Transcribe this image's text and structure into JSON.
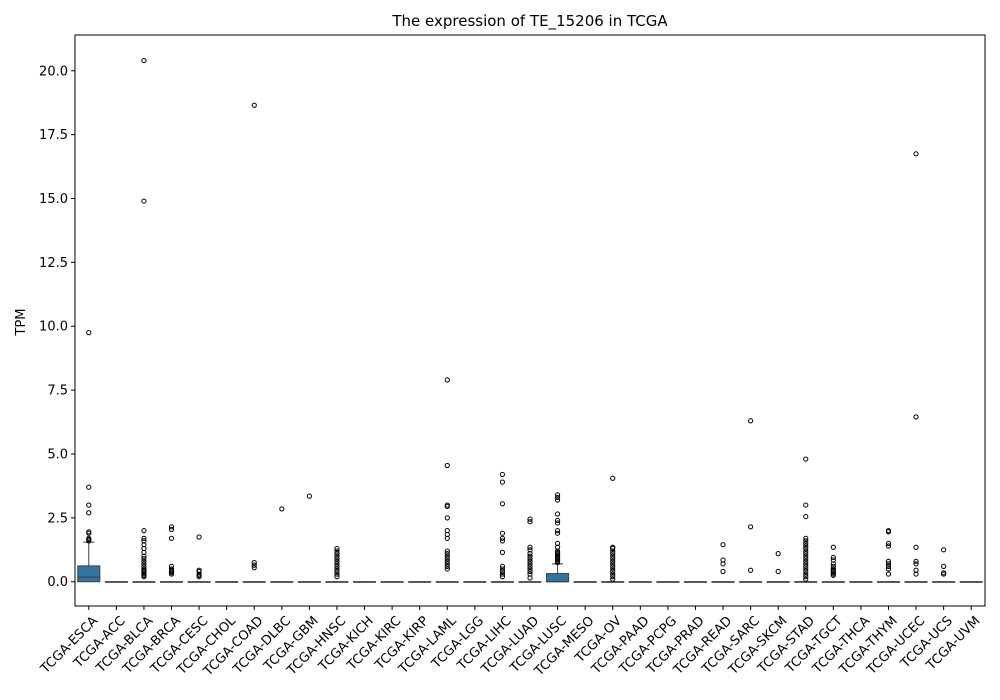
{
  "chart_data": {
    "type": "box",
    "title": "The expression of TE_15206 in TCGA",
    "xlabel": "",
    "ylabel": "TPM",
    "ylim": [
      -0.95,
      21.4
    ],
    "yticks": [
      0.0,
      2.5,
      5.0,
      7.5,
      10.0,
      12.5,
      15.0,
      17.5,
      20.0
    ],
    "ytick_labels": [
      "0.0",
      "2.5",
      "5.0",
      "7.5",
      "10.0",
      "12.5",
      "15.0",
      "17.5",
      "20.0"
    ],
    "grid": false,
    "box_color": "#3274a1",
    "categories": [
      "TCGA-ESCA",
      "TCGA-ACC",
      "TCGA-BLCA",
      "TCGA-BRCA",
      "TCGA-CESC",
      "TCGA-CHOL",
      "TCGA-COAD",
      "TCGA-DLBC",
      "TCGA-GBM",
      "TCGA-HNSC",
      "TCGA-KICH",
      "TCGA-KIRC",
      "TCGA-KIRP",
      "TCGA-LAML",
      "TCGA-LGG",
      "TCGA-LIHC",
      "TCGA-LUAD",
      "TCGA-LUSC",
      "TCGA-MESO",
      "TCGA-OV",
      "TCGA-PAAD",
      "TCGA-PCPG",
      "TCGA-PRAD",
      "TCGA-READ",
      "TCGA-SARC",
      "TCGA-SKCM",
      "TCGA-STAD",
      "TCGA-TGCT",
      "TCGA-THCA",
      "TCGA-THYM",
      "TCGA-UCEC",
      "TCGA-UCS",
      "TCGA-UVM"
    ],
    "boxes": [
      {
        "q1": 0.0,
        "median": 0.18,
        "q3": 0.62,
        "whisker_low": 0.0,
        "whisker_high": 1.55,
        "outliers": [
          9.75,
          3.7,
          3.0,
          2.7,
          1.95,
          1.9,
          1.7,
          1.65,
          1.6
        ]
      },
      {
        "q1": 0,
        "median": 0,
        "q3": 0,
        "whisker_low": 0,
        "whisker_high": 0,
        "outliers": []
      },
      {
        "q1": 0,
        "median": 0,
        "q3": 0,
        "whisker_low": 0,
        "whisker_high": 0,
        "outliers": [
          20.4,
          14.9,
          2.0,
          1.7,
          1.6,
          1.45,
          1.3,
          1.15,
          1.0,
          0.9,
          0.8,
          0.7,
          0.6,
          0.5,
          0.45,
          0.4,
          0.35,
          0.3,
          0.25,
          0.2
        ]
      },
      {
        "q1": 0,
        "median": 0,
        "q3": 0,
        "whisker_low": 0,
        "whisker_high": 0,
        "outliers": [
          2.15,
          2.05,
          1.7,
          0.6,
          0.5,
          0.45,
          0.4,
          0.35,
          0.3
        ]
      },
      {
        "q1": 0,
        "median": 0,
        "q3": 0,
        "whisker_low": 0,
        "whisker_high": 0,
        "outliers": [
          1.75,
          0.45,
          0.4,
          0.3,
          0.25,
          0.2
        ]
      },
      {
        "q1": 0,
        "median": 0,
        "q3": 0,
        "whisker_low": 0,
        "whisker_high": 0,
        "outliers": []
      },
      {
        "q1": 0,
        "median": 0,
        "q3": 0,
        "whisker_low": 0,
        "whisker_high": 0,
        "outliers": [
          18.65,
          0.75,
          0.65,
          0.55
        ]
      },
      {
        "q1": 0,
        "median": 0,
        "q3": 0,
        "whisker_low": 0,
        "whisker_high": 0,
        "outliers": [
          2.85
        ]
      },
      {
        "q1": 0,
        "median": 0,
        "q3": 0,
        "whisker_low": 0,
        "whisker_high": 0,
        "outliers": [
          3.35
        ]
      },
      {
        "q1": 0,
        "median": 0,
        "q3": 0,
        "whisker_low": 0,
        "whisker_high": 0,
        "outliers": [
          1.3,
          1.2,
          1.1,
          1.0,
          0.9,
          0.8,
          0.7,
          0.6,
          0.5,
          0.4,
          0.3,
          0.2
        ]
      },
      {
        "q1": 0,
        "median": 0,
        "q3": 0,
        "whisker_low": 0,
        "whisker_high": 0,
        "outliers": []
      },
      {
        "q1": 0,
        "median": 0,
        "q3": 0,
        "whisker_low": 0,
        "whisker_high": 0,
        "outliers": []
      },
      {
        "q1": 0,
        "median": 0,
        "q3": 0,
        "whisker_low": 0,
        "whisker_high": 0,
        "outliers": []
      },
      {
        "q1": 0,
        "median": 0,
        "q3": 0,
        "whisker_low": 0,
        "whisker_high": 0,
        "outliers": [
          7.9,
          4.55,
          3.0,
          2.95,
          2.5,
          2.0,
          1.85,
          1.7,
          1.2,
          1.1,
          1.0,
          0.9,
          0.8,
          0.7,
          0.6,
          0.5
        ]
      },
      {
        "q1": 0,
        "median": 0,
        "q3": 0,
        "whisker_low": 0,
        "whisker_high": 0,
        "outliers": []
      },
      {
        "q1": 0,
        "median": 0,
        "q3": 0,
        "whisker_low": 0,
        "whisker_high": 0,
        "outliers": [
          4.2,
          3.9,
          3.05,
          1.9,
          1.7,
          1.6,
          1.15,
          0.6,
          0.5,
          0.4,
          0.3,
          0.2
        ]
      },
      {
        "q1": 0,
        "median": 0,
        "q3": 0,
        "whisker_low": 0,
        "whisker_high": 0,
        "outliers": [
          2.45,
          2.35,
          1.35,
          1.25,
          1.1,
          1.0,
          0.9,
          0.8,
          0.7,
          0.6,
          0.5,
          0.4,
          0.3,
          0.15
        ]
      },
      {
        "q1": 0.0,
        "median": 0.0,
        "q3": 0.32,
        "whisker_low": 0.0,
        "whisker_high": 0.7,
        "outliers": [
          3.4,
          3.3,
          3.2,
          2.65,
          2.4,
          2.3,
          2.0,
          1.9,
          1.5,
          1.35,
          1.2,
          1.15,
          1.1,
          1.05,
          1.0,
          0.95,
          0.9,
          0.85,
          0.8,
          0.75
        ]
      },
      {
        "q1": 0,
        "median": 0,
        "q3": 0,
        "whisker_low": 0,
        "whisker_high": 0,
        "outliers": []
      },
      {
        "q1": 0,
        "median": 0,
        "q3": 0,
        "whisker_low": 0,
        "whisker_high": 0,
        "outliers": [
          4.05,
          1.35,
          1.3,
          1.2,
          1.1,
          1.0,
          0.9,
          0.8,
          0.7,
          0.6,
          0.5,
          0.4,
          0.3,
          0.2,
          0.1
        ]
      },
      {
        "q1": 0,
        "median": 0,
        "q3": 0,
        "whisker_low": 0,
        "whisker_high": 0,
        "outliers": []
      },
      {
        "q1": 0,
        "median": 0,
        "q3": 0,
        "whisker_low": 0,
        "whisker_high": 0,
        "outliers": []
      },
      {
        "q1": 0,
        "median": 0,
        "q3": 0,
        "whisker_low": 0,
        "whisker_high": 0,
        "outliers": []
      },
      {
        "q1": 0,
        "median": 0,
        "q3": 0,
        "whisker_low": 0,
        "whisker_high": 0,
        "outliers": [
          1.45,
          0.85,
          0.7,
          0.4
        ]
      },
      {
        "q1": 0,
        "median": 0,
        "q3": 0,
        "whisker_low": 0,
        "whisker_high": 0,
        "outliers": [
          6.3,
          2.15,
          0.45
        ]
      },
      {
        "q1": 0,
        "median": 0,
        "q3": 0,
        "whisker_low": 0,
        "whisker_high": 0,
        "outliers": [
          1.1,
          0.4
        ]
      },
      {
        "q1": 0,
        "median": 0,
        "q3": 0,
        "whisker_low": 0,
        "whisker_high": 0,
        "outliers": [
          4.8,
          3.0,
          2.55,
          1.7,
          1.6,
          1.5,
          1.4,
          1.3,
          1.2,
          1.1,
          1.0,
          0.9,
          0.8,
          0.7,
          0.6,
          0.5,
          0.4,
          0.3,
          0.2,
          0.1
        ]
      },
      {
        "q1": 0,
        "median": 0,
        "q3": 0,
        "whisker_low": 0,
        "whisker_high": 0,
        "outliers": [
          1.35,
          0.95,
          0.85,
          0.7,
          0.6,
          0.5,
          0.45,
          0.4,
          0.35,
          0.3,
          0.25
        ]
      },
      {
        "q1": 0,
        "median": 0,
        "q3": 0,
        "whisker_low": 0,
        "whisker_high": 0,
        "outliers": []
      },
      {
        "q1": 0,
        "median": 0,
        "q3": 0,
        "whisker_low": 0,
        "whisker_high": 0,
        "outliers": [
          2.0,
          1.95,
          1.5,
          1.4,
          0.8,
          0.7,
          0.6,
          0.5,
          0.3
        ]
      },
      {
        "q1": 0,
        "median": 0,
        "q3": 0,
        "whisker_low": 0,
        "whisker_high": 0,
        "outliers": [
          16.75,
          6.45,
          1.35,
          0.8,
          0.7,
          0.45,
          0.3
        ]
      },
      {
        "q1": 0,
        "median": 0,
        "q3": 0,
        "whisker_low": 0,
        "whisker_high": 0,
        "outliers": [
          1.25,
          0.6,
          0.35,
          0.3
        ]
      },
      {
        "q1": 0,
        "median": 0,
        "q3": 0,
        "whisker_low": 0,
        "whisker_high": 0,
        "outliers": []
      }
    ]
  }
}
